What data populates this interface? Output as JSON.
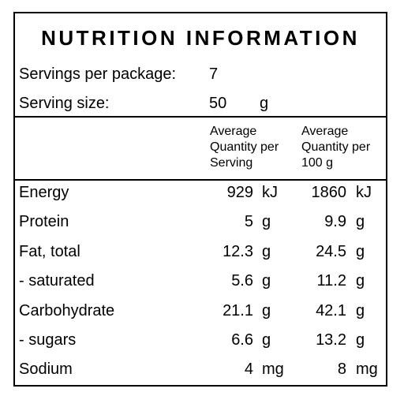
{
  "panel": {
    "title": "NUTRITION INFORMATION",
    "servings_label": "Servings per package:",
    "servings_value": "7",
    "size_label": "Serving size:",
    "size_value": "50",
    "size_unit": "g",
    "col1_header": [
      "Average",
      "Quantity per",
      "Serving"
    ],
    "col2_header": [
      "Average",
      "Quantity per",
      "100 g"
    ],
    "rows": [
      {
        "label": "Energy",
        "v1": "929",
        "u1": "kJ",
        "v2": "1860",
        "u2": "kJ"
      },
      {
        "label": "Protein",
        "v1": "5",
        "u1": "g",
        "v2": "9.9",
        "u2": "g"
      },
      {
        "label": "Fat, total",
        "v1": "12.3",
        "u1": "g",
        "v2": "24.5",
        "u2": "g"
      },
      {
        "label": "- saturated",
        "v1": "5.6",
        "u1": "g",
        "v2": "11.2",
        "u2": "g"
      },
      {
        "label": "Carbohydrate",
        "v1": "21.1",
        "u1": "g",
        "v2": "42.1",
        "u2": "g"
      },
      {
        "label": "- sugars",
        "v1": "6.6",
        "u1": "g",
        "v2": "13.2",
        "u2": "g"
      },
      {
        "label": "Sodium",
        "v1": "4",
        "u1": "mg",
        "v2": "8",
        "u2": "mg"
      }
    ]
  }
}
